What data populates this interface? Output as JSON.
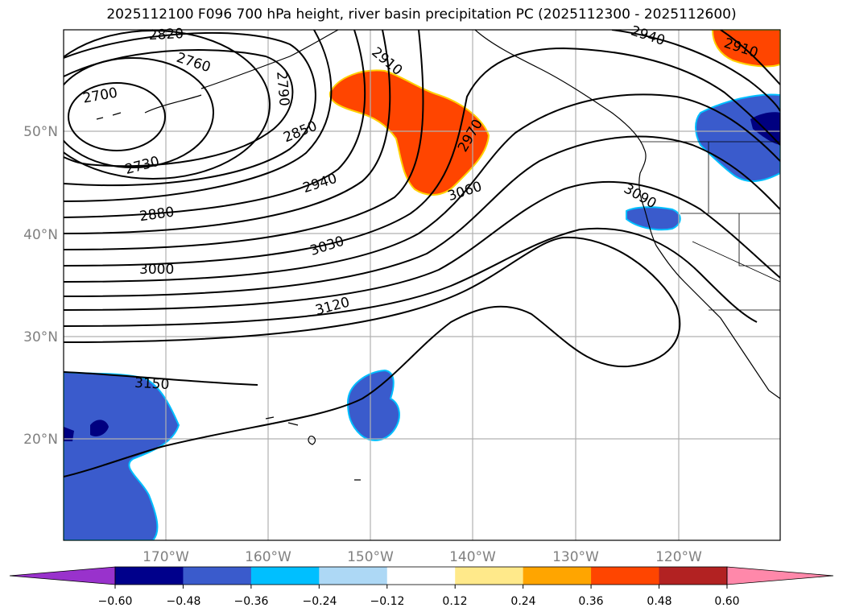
{
  "title": "2025112100 F096 700 hPa height, river basin precipitation PC (2025112300 - 2025112600)",
  "map": {
    "lat_labels": [
      "50°N",
      "40°N",
      "30°N",
      "20°N"
    ],
    "lon_labels": [
      "170°W",
      "160°W",
      "150°W",
      "140°W",
      "130°W",
      "120°W"
    ],
    "contour_labels": [
      "2820",
      "2760",
      "2700",
      "2790",
      "2910",
      "2940",
      "2910",
      "2850",
      "2730",
      "2970",
      "2940",
      "3060",
      "3090",
      "2880",
      "3030",
      "3000",
      "3120",
      "3150"
    ],
    "colors": {
      "ocean": "#ffffff",
      "orange": "#ff4500",
      "blue": "#3a5bcc",
      "dark_blue": "#000080",
      "grid": "#b0b0b0"
    }
  },
  "colorbar": {
    "tick_labels": [
      "−0.60",
      "−0.48",
      "−0.36",
      "−0.24",
      "−0.12",
      "0.12",
      "0.24",
      "0.36",
      "0.48",
      "0.60"
    ],
    "colors": [
      "#9932cc",
      "#00008b",
      "#3a5bcc",
      "#00bfff",
      "#add8f5",
      "#ffffff",
      "#ffe98a",
      "#ffa500",
      "#ff4500",
      "#b22222",
      "#ff88aa"
    ]
  }
}
